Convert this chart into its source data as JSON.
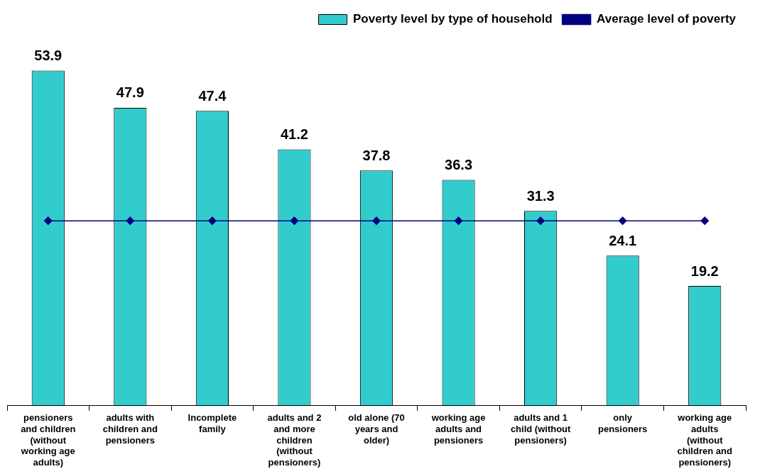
{
  "chart_data": {
    "type": "bar",
    "categories": [
      "pensioners and children (without working age adults)",
      "adults with children and pensioners",
      "Incomplete family",
      "adults and 2 and more children (without pensioners)",
      "old alone (70 years and older)",
      "working age adults and pensioners",
      "adults and 1 child (without pensioners)",
      "only pensioners",
      "working age adults (without children and pensioners)"
    ],
    "series": [
      {
        "name": "Poverty level by type of household",
        "color": "#33cccc",
        "values": [
          53.9,
          47.9,
          47.4,
          41.2,
          37.8,
          36.3,
          31.3,
          24.1,
          19.2
        ],
        "value_labels": [
          "53.9",
          "47.9",
          "47.4",
          "41.2",
          "37.8",
          "36.3",
          "31.3",
          "24.1",
          "19.2"
        ]
      },
      {
        "name": "Average level of poverty",
        "type": "line",
        "color": "#000080",
        "marker": "diamond",
        "values": [
          29.7,
          29.7,
          29.7,
          29.7,
          29.7,
          29.7,
          29.7,
          29.7,
          29.7
        ]
      }
    ],
    "legend": "top right",
    "grid": false
  }
}
